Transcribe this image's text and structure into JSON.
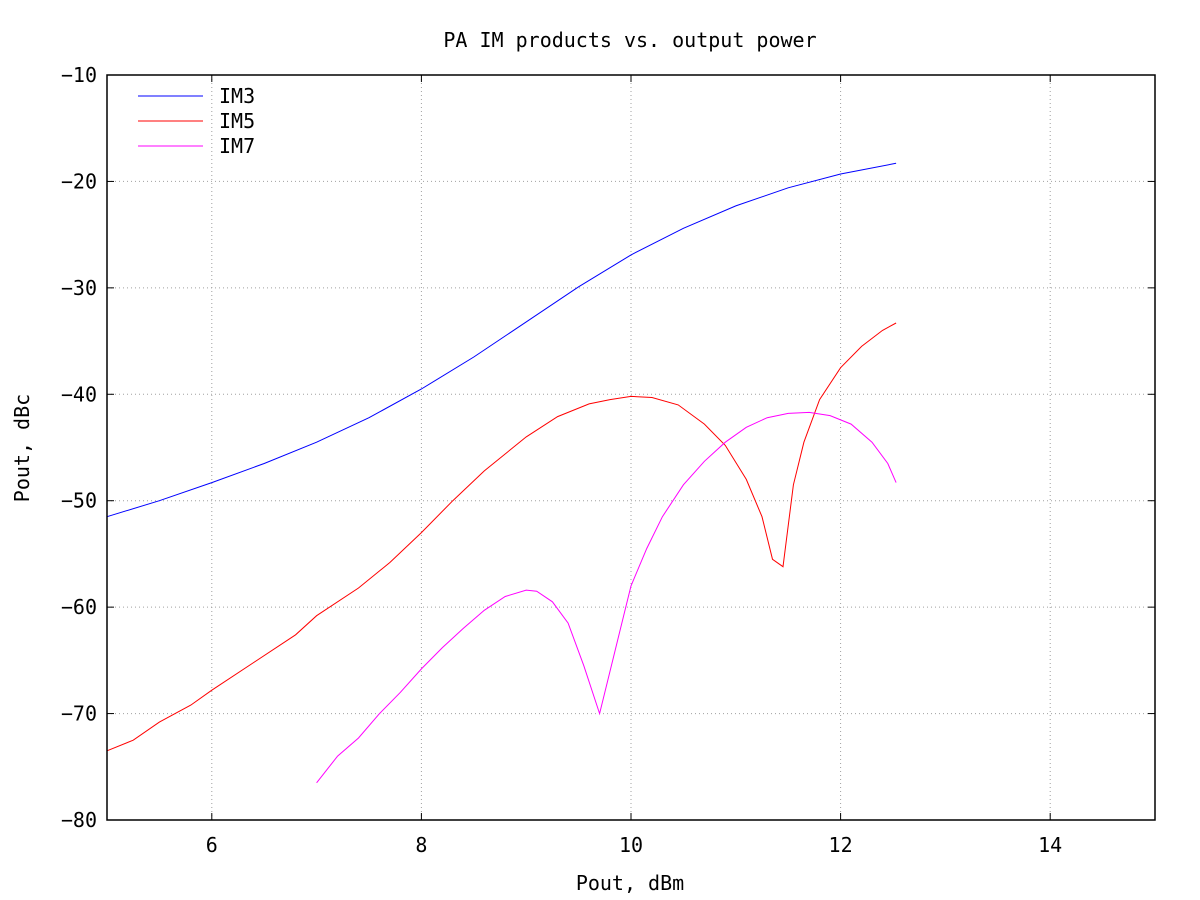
{
  "chart_data": {
    "type": "line",
    "title": "PA IM products vs. output power",
    "xlabel": "Pout, dBm",
    "ylabel": "Pout, dBc",
    "xlim": [
      5,
      15
    ],
    "ylim": [
      -80,
      -10
    ],
    "xticks": [
      6,
      8,
      10,
      12,
      14
    ],
    "yticks": [
      -80,
      -70,
      -60,
      -50,
      -40,
      -30,
      -20,
      -10
    ],
    "grid": true,
    "legend_position": "top-left",
    "series": [
      {
        "name": "IM3",
        "color": "#0000ff",
        "x": [
          5.0,
          5.5,
          6.0,
          6.5,
          7.0,
          7.5,
          8.0,
          8.5,
          9.0,
          9.5,
          10.0,
          10.5,
          11.0,
          11.5,
          12.0,
          12.53
        ],
        "y": [
          -51.5,
          -50.0,
          -48.3,
          -46.5,
          -44.5,
          -42.2,
          -39.5,
          -36.5,
          -33.2,
          -29.9,
          -26.9,
          -24.4,
          -22.3,
          -20.6,
          -19.3,
          -18.3
        ]
      },
      {
        "name": "IM5",
        "color": "#ff0000",
        "x": [
          5.0,
          5.25,
          5.5,
          5.8,
          6.0,
          6.4,
          6.8,
          7.0,
          7.4,
          7.7,
          8.0,
          8.3,
          8.6,
          9.0,
          9.3,
          9.6,
          9.8,
          10.0,
          10.2,
          10.45,
          10.7,
          10.9,
          11.1,
          11.25,
          11.35,
          11.45,
          11.55,
          11.65,
          11.8,
          12.0,
          12.2,
          12.4,
          12.53
        ],
        "y": [
          -73.5,
          -72.5,
          -70.8,
          -69.2,
          -67.8,
          -65.2,
          -62.6,
          -60.8,
          -58.2,
          -55.8,
          -53.0,
          -50.0,
          -47.2,
          -44.0,
          -42.1,
          -40.9,
          -40.5,
          -40.2,
          -40.3,
          -41.0,
          -42.8,
          -44.8,
          -48.0,
          -51.5,
          -55.5,
          -56.2,
          -48.5,
          -44.5,
          -40.5,
          -37.5,
          -35.5,
          -34.0,
          -33.3
        ]
      },
      {
        "name": "IM7",
        "color": "#ff00ff",
        "x": [
          7.0,
          7.2,
          7.4,
          7.6,
          7.8,
          8.0,
          8.2,
          8.4,
          8.6,
          8.8,
          9.0,
          9.1,
          9.25,
          9.4,
          9.55,
          9.7,
          9.85,
          10.0,
          10.15,
          10.3,
          10.5,
          10.7,
          10.9,
          11.1,
          11.3,
          11.5,
          11.7,
          11.9,
          12.1,
          12.3,
          12.45,
          12.53
        ],
        "y": [
          -76.5,
          -74.0,
          -72.3,
          -70.0,
          -68.0,
          -65.8,
          -63.8,
          -62.0,
          -60.3,
          -59.0,
          -58.4,
          -58.5,
          -59.5,
          -61.5,
          -65.5,
          -70.0,
          -64.0,
          -58.0,
          -54.5,
          -51.5,
          -48.5,
          -46.3,
          -44.5,
          -43.1,
          -42.2,
          -41.8,
          -41.7,
          -42.0,
          -42.8,
          -44.5,
          -46.5,
          -48.3
        ]
      }
    ]
  }
}
